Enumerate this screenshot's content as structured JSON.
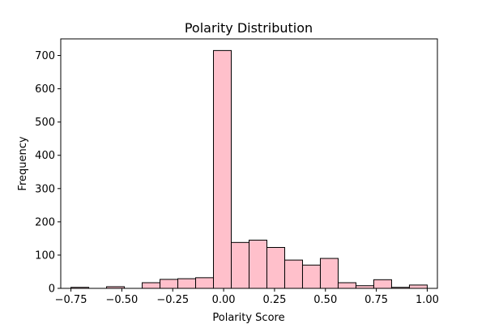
{
  "chart_data": {
    "type": "bar",
    "title": "Polarity Distribution",
    "xlabel": "Polarity Score",
    "ylabel": "Frequency",
    "xlim": [
      -0.8,
      1.05
    ],
    "ylim": [
      0,
      750
    ],
    "xticks": [
      -0.75,
      -0.5,
      -0.25,
      0.0,
      0.25,
      0.5,
      0.75,
      1.0
    ],
    "xtick_labels": [
      "−0.75",
      "−0.50",
      "−0.25",
      "0.00",
      "0.25",
      "0.50",
      "0.75",
      "1.00"
    ],
    "yticks": [
      0,
      100,
      200,
      300,
      400,
      500,
      600,
      700
    ],
    "ytick_labels": [
      "0",
      "100",
      "200",
      "300",
      "400",
      "500",
      "600",
      "700"
    ],
    "bin_edges": [
      -0.75,
      -0.6625,
      -0.575,
      -0.4875,
      -0.4,
      -0.3125,
      -0.225,
      -0.1375,
      -0.05,
      0.0375,
      0.125,
      0.2125,
      0.3,
      0.3875,
      0.475,
      0.5625,
      0.65,
      0.7375,
      0.825,
      0.9125,
      1.0
    ],
    "values": [
      3,
      0,
      5,
      0,
      17,
      27,
      29,
      32,
      715,
      138,
      145,
      123,
      85,
      70,
      90,
      17,
      8,
      26,
      3,
      10
    ],
    "bar_color": "#ffc0cb",
    "edge_color": "#000000",
    "grid": false,
    "legend": "none"
  }
}
